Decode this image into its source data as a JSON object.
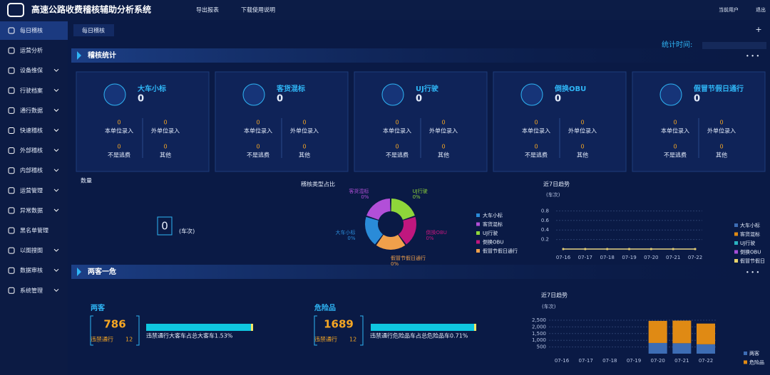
{
  "header": {
    "title": "高速公路收费稽核辅助分析系统",
    "actions": [
      "导出报表",
      "下载使用说明"
    ],
    "user_label": "当前用户",
    "logout": "退出"
  },
  "sidebar": {
    "items": [
      {
        "label": "每日稽核",
        "expandable": false
      },
      {
        "label": "运营分析",
        "expandable": false
      },
      {
        "label": "设备维保",
        "expandable": true
      },
      {
        "label": "行驶档案",
        "expandable": true
      },
      {
        "label": "通行数据",
        "expandable": true
      },
      {
        "label": "快速稽核",
        "expandable": true
      },
      {
        "label": "外部稽核",
        "expandable": true
      },
      {
        "label": "内部稽核",
        "expandable": true
      },
      {
        "label": "运营管理",
        "expandable": true
      },
      {
        "label": "异常数据",
        "expandable": true
      },
      {
        "label": "黑名单管理",
        "expandable": false
      },
      {
        "label": "以图搜图",
        "expandable": true
      },
      {
        "label": "数据审核",
        "expandable": true
      },
      {
        "label": "系统管理",
        "expandable": true
      }
    ]
  },
  "tabs": {
    "items": [
      "每日稽核"
    ],
    "add": "+"
  },
  "stat_time_label": "统计时间:",
  "audit": {
    "title": "稽核统计",
    "cards": [
      {
        "title": "大车小标",
        "value": 0,
        "items": [
          {
            "label": "本单位录入",
            "value": 0
          },
          {
            "label": "外单位录入",
            "value": 0
          },
          {
            "label": "不是逃费",
            "value": 0
          },
          {
            "label": "其他",
            "value": 0
          }
        ]
      },
      {
        "title": "客货混标",
        "value": 0,
        "items": [
          {
            "label": "本单位录入",
            "value": 0
          },
          {
            "label": "外单位录入",
            "value": 0
          },
          {
            "label": "不是逃费",
            "value": 0
          },
          {
            "label": "其他",
            "value": 0
          }
        ]
      },
      {
        "title": "UJ行驶",
        "value": 0,
        "items": [
          {
            "label": "本单位录入",
            "value": 0
          },
          {
            "label": "外单位录入",
            "value": 0
          },
          {
            "label": "不是逃费",
            "value": 0
          },
          {
            "label": "其他",
            "value": 0
          }
        ]
      },
      {
        "title": "倒换OBU",
        "value": 0,
        "items": [
          {
            "label": "本单位录入",
            "value": 0
          },
          {
            "label": "外单位录入",
            "value": 0
          },
          {
            "label": "不是逃费",
            "value": 0
          },
          {
            "label": "其他",
            "value": 0
          }
        ]
      },
      {
        "title": "假冒节假日通行",
        "value": 0,
        "items": [
          {
            "label": "本单位录入",
            "value": 0
          },
          {
            "label": "外单位录入",
            "value": 0
          },
          {
            "label": "不是逃费",
            "value": 0
          },
          {
            "label": "其他",
            "value": 0
          }
        ]
      }
    ]
  },
  "count": {
    "title": "数量",
    "value": 0,
    "unit": "(车次)"
  },
  "type_share": {
    "type": "pie",
    "title": "稽核类型占比",
    "categories": [
      "大车小标",
      "客货混标",
      "UJ行驶",
      "倒换OBU",
      "假冒节假日通行"
    ],
    "values": [
      0,
      0,
      0,
      0,
      0
    ],
    "value_labels": [
      "0%",
      "0%",
      "0%",
      "0%",
      "0%"
    ],
    "colors": [
      "#2a8bd8",
      "#b24fd8",
      "#8fd63a",
      "#c0177e",
      "#f0a04b"
    ]
  },
  "trend": {
    "type": "line",
    "title": "近7日趋势",
    "unit": "(车次)",
    "x": [
      "07-16",
      "07-17",
      "07-18",
      "07-19",
      "07-20",
      "07-21",
      "07-22"
    ],
    "ylim": [
      0,
      1
    ],
    "yticks": [
      0.2,
      0.4,
      0.6,
      0.8
    ],
    "series": [
      {
        "name": "大车小标",
        "color": "#3d6db5",
        "values": [
          0,
          0,
          0,
          0,
          0,
          0,
          0
        ]
      },
      {
        "name": "客货混标",
        "color": "#e08a14",
        "values": [
          0,
          0,
          0,
          0,
          0,
          0,
          0
        ]
      },
      {
        "name": "UJ行驶",
        "color": "#2bb3c0",
        "values": [
          0,
          0,
          0,
          0,
          0,
          0,
          0
        ]
      },
      {
        "name": "倒换OBU",
        "color": "#a64fd8",
        "values": [
          0,
          0,
          0,
          0,
          0,
          0,
          0
        ]
      },
      {
        "name": "假冒节假日",
        "color": "#e8d36b",
        "values": [
          0,
          0,
          0,
          0,
          0,
          0,
          0
        ]
      }
    ]
  },
  "two_one": {
    "title": "两客一危",
    "groups": [
      {
        "title": "两客",
        "value": 786,
        "violation_label": "违禁通行",
        "violation": 12,
        "ratio_text": "违禁通行大客车占总大客车1.53%"
      },
      {
        "title": "危险品",
        "value": 1689,
        "violation_label": "违禁通行",
        "violation": 12,
        "ratio_text": "违禁通行危险品车占总危险品车0.71%"
      }
    ]
  },
  "bar_trend": {
    "type": "bar",
    "stacked": true,
    "title": "近7日趋势",
    "unit": "(车次)",
    "x": [
      "07-16",
      "07-17",
      "07-18",
      "07-19",
      "07-20",
      "07-21",
      "07-22"
    ],
    "ylim": [
      0,
      2500
    ],
    "yticks": [
      500,
      {
        "value": 1000,
        "label": "1,000"
      },
      {
        "value": 1500,
        "label": "1,500"
      },
      {
        "value": 2000,
        "label": "2,000"
      },
      {
        "value": 2500,
        "label": "2,500"
      }
    ],
    "series": [
      {
        "name": "两客",
        "color": "#3d6db5",
        "values": [
          0,
          0,
          0,
          0,
          800,
          780,
          700
        ]
      },
      {
        "name": "危险品",
        "color": "#e08a14",
        "values": [
          0,
          0,
          0,
          0,
          1650,
          1690,
          1550
        ]
      }
    ]
  }
}
